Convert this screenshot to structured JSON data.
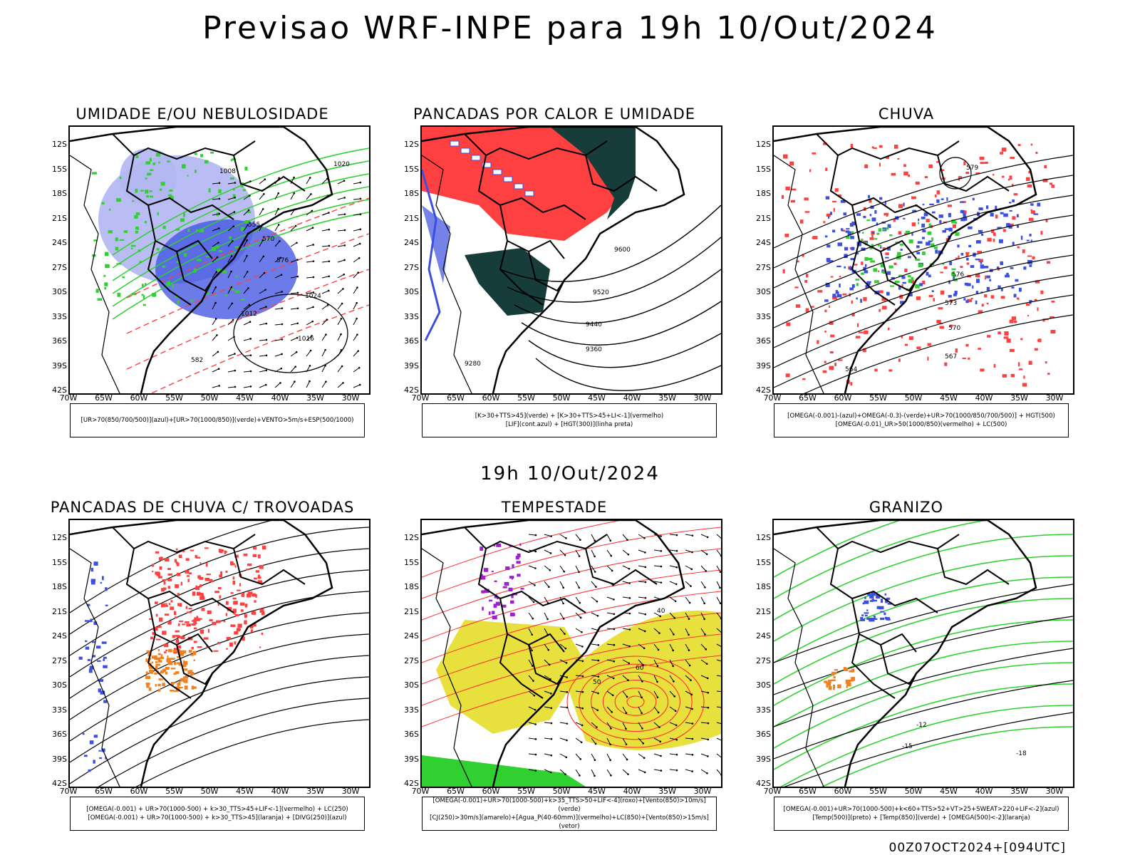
{
  "title": "Previsao WRF-INPE  para 19h 10/Out/2024",
  "mid_title": "19h 10/Out/2024",
  "footer": "00Z07OCT2024+[094UTC]",
  "lat_labels": [
    "12S",
    "15S",
    "18S",
    "21S",
    "24S",
    "27S",
    "30S",
    "33S",
    "36S",
    "39S",
    "42S"
  ],
  "lon_labels": [
    "70W",
    "65W",
    "60W",
    "55W",
    "50W",
    "45W",
    "40W",
    "35W",
    "30W"
  ],
  "colors": {
    "blue": "#3b4fe0",
    "lavender": "#b3b6f2",
    "green": "#2fd02f",
    "red": "#ff4040",
    "darkteal": "#163d3a",
    "yellow": "#e6dd2b",
    "orange": "#f08020",
    "purple": "#a020d0"
  },
  "panels": [
    {
      "id": "umidade",
      "title": "UMIDADE E/OU NEBULOSIDADE",
      "legend": [
        "[UR>70(850/700/500)](azul)+[UR>70(1000/850)](verde)+VENTO>5m/s+ESP(500/1000)"
      ],
      "contour_labels": [
        "1008",
        "1012",
        "1016",
        "1020",
        "1024",
        "555",
        "570",
        "576",
        "582"
      ]
    },
    {
      "id": "pancadas-calor",
      "title": "PANCADAS POR CALOR E UMIDADE",
      "legend": [
        "[K>30+TTS>45](verde) + [K>30+TTS>45+LI<-1](vermelho)",
        "[LIF](cont.azul) + [HGT(300)](linha preta)"
      ],
      "contour_labels": [
        "9600",
        "9520",
        "9440",
        "9360",
        "9280"
      ]
    },
    {
      "id": "chuva",
      "title": "CHUVA",
      "legend": [
        "[OMEGA(-0.001)-(azul)+OMEGA(-0.3)-(verde)+UR>70(1000/850/700/500)] + HGT(500)",
        "[OMEGA(-0.01)_UR>50(1000/850)(vermelho) + LC(500)"
      ],
      "contour_labels": [
        "579",
        "576",
        "573",
        "570",
        "567",
        "564"
      ]
    },
    {
      "id": "pancadas-trovoadas",
      "title": "PANCADAS DE CHUVA C/ TROVOADAS",
      "legend": [
        "[OMEGA(-0.001) + UR>70(1000-500) + k>30_TTS>45+LIF<-1](vermelho) + LC(250)",
        "[OMEGA(-0.001) + UR>70(1000-500) + k>30_TTS>45](laranja) + [DIVG(250)](azul)"
      ],
      "contour_labels": []
    },
    {
      "id": "tempestade",
      "title": "TEMPESTADE",
      "legend": [
        "[OMEGA(-0.001)+UR>70(1000-500)+k>35_TTS>50+LIF<-4](roxo)+[Vento(850)>10m/s](verde)",
        "[CJ(250)>30m/s](amarelo)+[Agua_P(40-60mm)](vermelho)+LC(850)+[Vento(850)>15m/s](vetor)"
      ],
      "contour_labels": [
        "40",
        "50",
        "60"
      ]
    },
    {
      "id": "granizo",
      "title": "GRANIZO",
      "legend": [
        "[OMEGA(-0.001)+UR>70(1000-500)+k<60+TTS>52+VT>25+SWEAT>220+LIF<-2](azul)",
        "[Temp(500)](preto) + [Temp(850)](verde) + [OMEGA(500)<-2](laranja)"
      ],
      "contour_labels": [
        "-12",
        "-15",
        "-18"
      ]
    }
  ]
}
